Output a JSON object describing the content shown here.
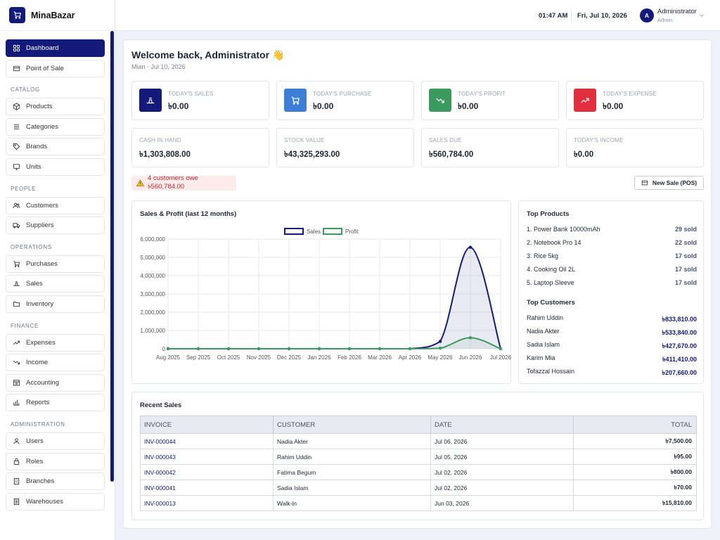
{
  "brand": {
    "name": "MinaBazar"
  },
  "topbar": {
    "time": "01:47 AM",
    "date": "Fri, Jul 10, 2026",
    "avatar_initial": "A",
    "user_name": "Administrator",
    "user_role": "Admin"
  },
  "sidebar": {
    "dashboard": "Dashboard",
    "pos": "Point of Sale",
    "catalog": {
      "title": "CATALOG",
      "products": "Products",
      "categories": "Categories",
      "brands": "Brands",
      "units": "Units"
    },
    "people": {
      "title": "PEOPLE",
      "customers": "Customers",
      "suppliers": "Suppliers"
    },
    "operations": {
      "title": "OPERATIONS",
      "purchases": "Purchases",
      "sales": "Sales",
      "inventory": "Inventory"
    },
    "finance": {
      "title": "FINANCE",
      "expenses": "Expenses",
      "income": "Income",
      "accounting": "Accounting",
      "reports": "Reports"
    },
    "administration": {
      "title": "ADMINISTRATION",
      "users": "Users",
      "roles": "Roles",
      "branches": "Branches",
      "warehouses": "Warehouses"
    }
  },
  "welcome": {
    "title": "Welcome back, Administrator 👋",
    "subtitle": "Mian · Jul 10, 2026"
  },
  "cards": {
    "todays_sales": {
      "label": "TODAY'S SALES",
      "value": "৳0.00"
    },
    "todays_purchase": {
      "label": "TODAY'S PURCHASE",
      "value": "৳0.00"
    },
    "todays_profit": {
      "label": "TODAY'S PROFIT",
      "value": "৳0.00"
    },
    "todays_expense": {
      "label": "TODAY'S EXPENSE",
      "value": "৳0.00"
    },
    "cash_in_hand": {
      "label": "CASH IN HAND",
      "value": "৳1,303,808.00"
    },
    "stock_value": {
      "label": "STOCK VALUE",
      "value": "৳43,325,293.00"
    },
    "sales_due": {
      "label": "SALES DUE",
      "value": "৳560,784.00"
    },
    "todays_income": {
      "label": "TODAY'S INCOME",
      "value": "৳0.00"
    }
  },
  "colors": {
    "primary": "#131a7a",
    "purchase": "#3d7fd6",
    "profit": "#3b9a5e",
    "expense": "#e0303f",
    "sales_line": "#131a7a",
    "profit_line": "#3b9a5e"
  },
  "alert": {
    "text": "4 customers owe ৳560,784.00"
  },
  "new_sale_button": "New Sale (POS)",
  "chart_panel_title": "Sales & Profit (last 12 months)",
  "chart_data": {
    "type": "line",
    "title": "Sales & Profit (last 12 months)",
    "categories": [
      "Aug 2025",
      "Sep 2025",
      "Oct 2025",
      "Nov 2025",
      "Dec 2025",
      "Jan 2026",
      "Feb 2026",
      "Mar 2026",
      "Apr 2026",
      "May 2026",
      "Jun 2026",
      "Jul 2026"
    ],
    "series": [
      {
        "name": "Sales",
        "values": [
          0,
          0,
          0,
          0,
          0,
          0,
          0,
          0,
          0,
          400000,
          5550000,
          0
        ]
      },
      {
        "name": "Profit",
        "values": [
          0,
          0,
          0,
          0,
          0,
          0,
          0,
          0,
          0,
          30000,
          600000,
          0
        ]
      }
    ],
    "y_ticks": [
      "0",
      "1,000,000",
      "2,000,000",
      "3,000,000",
      "4,000,000",
      "5,000,000",
      "6,000,000"
    ],
    "ylim": [
      0,
      6000000
    ],
    "legend": "top",
    "grid": true
  },
  "top_products": {
    "title": "Top Products",
    "items": [
      {
        "name": "1. Power Bank 10000mAh",
        "value": "29 sold"
      },
      {
        "name": "2. Notebook Pro 14",
        "value": "22 sold"
      },
      {
        "name": "3. Rice 5kg",
        "value": "17 sold"
      },
      {
        "name": "4. Cooking Oil 2L",
        "value": "17 sold"
      },
      {
        "name": "5. Laptop Sleeve",
        "value": "17 sold"
      }
    ]
  },
  "top_customers": {
    "title": "Top Customers",
    "items": [
      {
        "name": "Rahim Uddin",
        "value": "৳833,810.00"
      },
      {
        "name": "Nadia Akter",
        "value": "৳533,840.00"
      },
      {
        "name": "Sadia Islam",
        "value": "৳427,670.00"
      },
      {
        "name": "Karim Mia",
        "value": "৳411,410.00"
      },
      {
        "name": "Tofazzal Hossain",
        "value": "৳207,660.00"
      }
    ]
  },
  "recent_sales": {
    "title": "Recent Sales",
    "headers": {
      "invoice": "INVOICE",
      "customer": "CUSTOMER",
      "date": "DATE",
      "total": "TOTAL"
    },
    "rows": [
      {
        "invoice": "INV-000044",
        "customer": "Nadia Akter",
        "date": "Jul 06, 2026",
        "total": "৳7,500.00"
      },
      {
        "invoice": "INV-000043",
        "customer": "Rahim Uddin",
        "date": "Jul 05, 2026",
        "total": "৳95.00"
      },
      {
        "invoice": "INV-000042",
        "customer": "Fatima Begum",
        "date": "Jul 02, 2026",
        "total": "৳800.00"
      },
      {
        "invoice": "INV-000041",
        "customer": "Sadia Islam",
        "date": "Jul 02, 2026",
        "total": "৳70.00"
      },
      {
        "invoice": "INV-000013",
        "customer": "Walk-in",
        "date": "Jun 03, 2026",
        "total": "৳15,810.00"
      }
    ]
  }
}
